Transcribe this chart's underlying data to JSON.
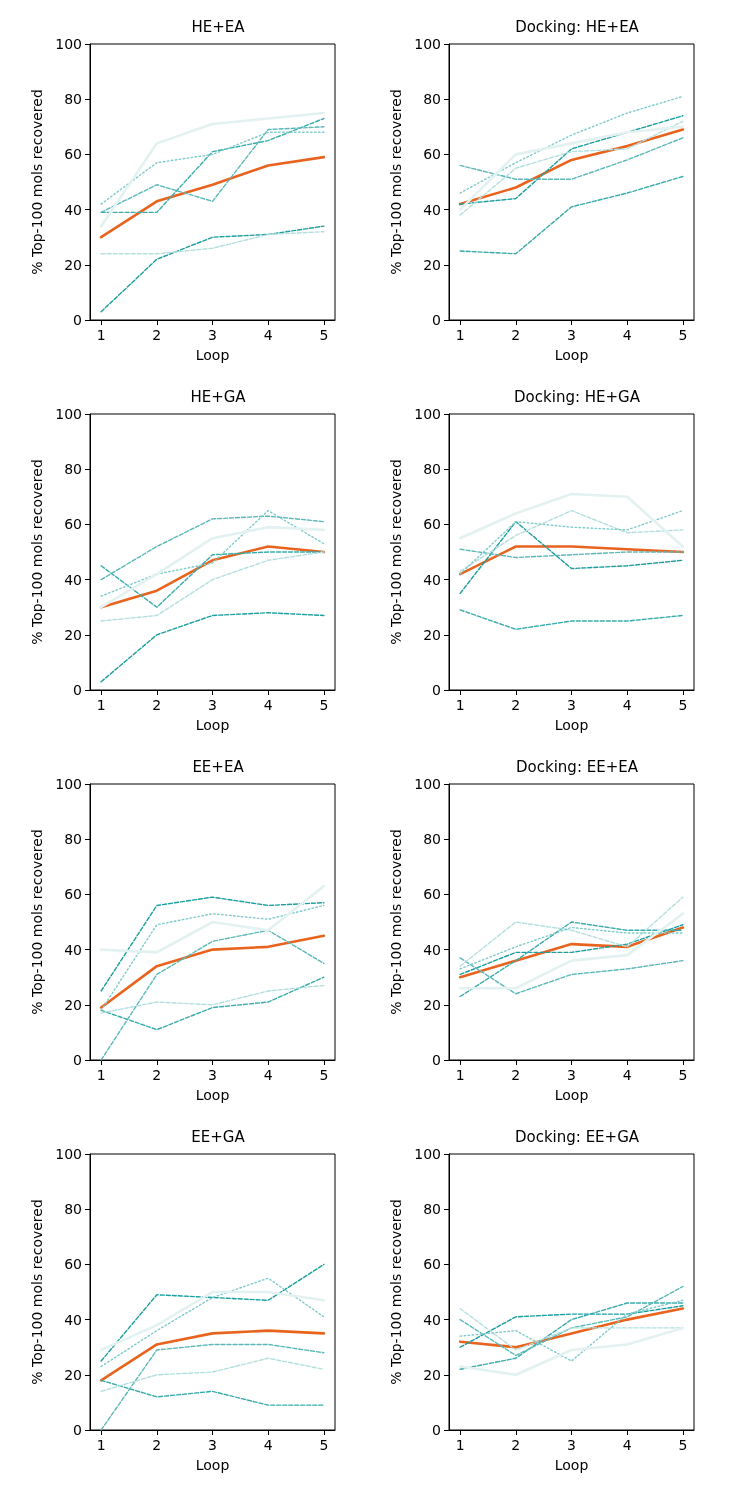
{
  "chart_data": [
    {
      "type": "line",
      "title": "HE+EA",
      "xlabel": "Loop",
      "ylabel": "% Top-100 mols recovered",
      "x": [
        1,
        2,
        3,
        4,
        5
      ],
      "xlim": [
        0.8,
        5.2
      ],
      "xticks": [
        1,
        2,
        3,
        4,
        5
      ],
      "ylim": [
        0,
        100
      ],
      "yticks": [
        0,
        20,
        40,
        60,
        80,
        100
      ],
      "series": [
        {
          "color": "#e3f1f1",
          "line_style": "solid",
          "values": [
            34,
            64,
            71,
            73,
            75
          ]
        },
        {
          "color": "#7fcaca",
          "line_style": "dotted",
          "values": [
            42,
            57,
            60,
            68,
            68
          ]
        },
        {
          "color": "#b5dfdf",
          "line_style": "dashed",
          "values": [
            24,
            24,
            26,
            31,
            32
          ]
        },
        {
          "color": "#5bb8b8",
          "line_style": "dashed",
          "values": [
            39,
            49,
            43,
            69,
            70
          ]
        },
        {
          "color": "#3aabab",
          "line_style": "dashed",
          "values": [
            39,
            39,
            61,
            65,
            73
          ]
        },
        {
          "color": "#1a9e9e",
          "line_style": "dashed",
          "values": [
            3,
            22,
            30,
            31,
            34
          ]
        },
        {
          "color": "#e8641e",
          "line_style": "solid",
          "values": [
            30,
            43,
            49,
            56,
            59
          ]
        }
      ]
    },
    {
      "type": "line",
      "title": "Docking: HE+EA",
      "xlabel": "Loop",
      "ylabel": "% Top-100 mols recovered",
      "x": [
        1,
        2,
        3,
        4,
        5
      ],
      "xlim": [
        0.8,
        5.2
      ],
      "xticks": [
        1,
        2,
        3,
        4,
        5
      ],
      "ylim": [
        0,
        100
      ],
      "yticks": [
        0,
        20,
        40,
        60,
        80,
        100
      ],
      "series": [
        {
          "color": "#e3f1f1",
          "line_style": "solid",
          "values": [
            40,
            60,
            64,
            68,
            70
          ]
        },
        {
          "color": "#7fcaca",
          "line_style": "dotted",
          "values": [
            46,
            57,
            67,
            75,
            81
          ]
        },
        {
          "color": "#b5dfdf",
          "line_style": "dashed",
          "values": [
            38,
            55,
            61,
            62,
            72
          ]
        },
        {
          "color": "#5bb8b8",
          "line_style": "dashed",
          "values": [
            56,
            51,
            51,
            58,
            66
          ]
        },
        {
          "color": "#3aabab",
          "line_style": "dashed",
          "values": [
            25,
            24,
            41,
            46,
            52
          ]
        },
        {
          "color": "#1a9e9e",
          "line_style": "dashed",
          "values": [
            42,
            44,
            62,
            68,
            74
          ]
        },
        {
          "color": "#e8641e",
          "line_style": "solid",
          "values": [
            42,
            48,
            58,
            63,
            69
          ]
        }
      ]
    },
    {
      "type": "line",
      "title": "HE+GA",
      "xlabel": "Loop",
      "ylabel": "% Top-100 mols recovered",
      "x": [
        1,
        2,
        3,
        4,
        5
      ],
      "xlim": [
        0.8,
        5.2
      ],
      "xticks": [
        1,
        2,
        3,
        4,
        5
      ],
      "ylim": [
        0,
        100
      ],
      "yticks": [
        0,
        20,
        40,
        60,
        80,
        100
      ],
      "series": [
        {
          "color": "#e3f1f1",
          "line_style": "solid",
          "values": [
            30,
            42,
            55,
            59,
            58
          ]
        },
        {
          "color": "#7fcaca",
          "line_style": "dotted",
          "values": [
            34,
            42,
            46,
            65,
            53
          ]
        },
        {
          "color": "#b5dfdf",
          "line_style": "dashed",
          "values": [
            25,
            27,
            40,
            47,
            50
          ]
        },
        {
          "color": "#5bb8b8",
          "line_style": "dashed",
          "values": [
            40,
            52,
            62,
            63,
            61
          ]
        },
        {
          "color": "#3aabab",
          "line_style": "dashed",
          "values": [
            45,
            30,
            49,
            50,
            50
          ]
        },
        {
          "color": "#1a9e9e",
          "line_style": "dashed",
          "values": [
            3,
            20,
            27,
            28,
            27
          ]
        },
        {
          "color": "#e8641e",
          "line_style": "solid",
          "values": [
            30,
            36,
            47,
            52,
            50
          ]
        }
      ]
    },
    {
      "type": "line",
      "title": "Docking: HE+GA",
      "xlabel": "Loop",
      "ylabel": "% Top-100 mols recovered",
      "x": [
        1,
        2,
        3,
        4,
        5
      ],
      "xlim": [
        0.8,
        5.2
      ],
      "xticks": [
        1,
        2,
        3,
        4,
        5
      ],
      "ylim": [
        0,
        100
      ],
      "yticks": [
        0,
        20,
        40,
        60,
        80,
        100
      ],
      "series": [
        {
          "color": "#e3f1f1",
          "line_style": "solid",
          "values": [
            55,
            64,
            71,
            70,
            52
          ]
        },
        {
          "color": "#7fcaca",
          "line_style": "dotted",
          "values": [
            42,
            61,
            59,
            58,
            65
          ]
        },
        {
          "color": "#b5dfdf",
          "line_style": "dashed",
          "values": [
            43,
            56,
            65,
            57,
            58
          ]
        },
        {
          "color": "#5bb8b8",
          "line_style": "dashed",
          "values": [
            51,
            48,
            49,
            50,
            50
          ]
        },
        {
          "color": "#3aabab",
          "line_style": "dashed",
          "values": [
            29,
            22,
            25,
            25,
            27
          ]
        },
        {
          "color": "#1a9e9e",
          "line_style": "dashed",
          "values": [
            35,
            61,
            44,
            45,
            47
          ]
        },
        {
          "color": "#e8641e",
          "line_style": "solid",
          "values": [
            42,
            52,
            52,
            51,
            50
          ]
        }
      ]
    },
    {
      "type": "line",
      "title": "EE+EA",
      "xlabel": "Loop",
      "ylabel": "% Top-100 mols recovered",
      "x": [
        1,
        2,
        3,
        4,
        5
      ],
      "xlim": [
        0.8,
        5.2
      ],
      "xticks": [
        1,
        2,
        3,
        4,
        5
      ],
      "ylim": [
        0,
        100
      ],
      "yticks": [
        0,
        20,
        40,
        60,
        80,
        100
      ],
      "series": [
        {
          "color": "#e3f1f1",
          "line_style": "solid",
          "values": [
            40,
            39,
            50,
            47,
            63
          ]
        },
        {
          "color": "#7fcaca",
          "line_style": "dotted",
          "values": [
            18,
            49,
            53,
            51,
            56
          ]
        },
        {
          "color": "#b5dfdf",
          "line_style": "dashed",
          "values": [
            17,
            21,
            20,
            25,
            27
          ]
        },
        {
          "color": "#5bb8b8",
          "line_style": "dashed",
          "values": [
            0,
            31,
            43,
            47,
            35
          ]
        },
        {
          "color": "#3aabab",
          "line_style": "dashed",
          "values": [
            18,
            11,
            19,
            21,
            30
          ]
        },
        {
          "color": "#1a9e9e",
          "line_style": "dashed",
          "values": [
            25,
            56,
            59,
            56,
            57
          ]
        },
        {
          "color": "#e8641e",
          "line_style": "solid",
          "values": [
            19,
            34,
            40,
            41,
            45
          ]
        }
      ]
    },
    {
      "type": "line",
      "title": "Docking: EE+EA",
      "xlabel": "Loop",
      "ylabel": "% Top-100 mols recovered",
      "x": [
        1,
        2,
        3,
        4,
        5
      ],
      "xlim": [
        0.8,
        5.2
      ],
      "xticks": [
        1,
        2,
        3,
        4,
        5
      ],
      "ylim": [
        0,
        100
      ],
      "yticks": [
        0,
        20,
        40,
        60,
        80,
        100
      ],
      "series": [
        {
          "color": "#e3f1f1",
          "line_style": "solid",
          "values": [
            26,
            26,
            36,
            38,
            53
          ]
        },
        {
          "color": "#7fcaca",
          "line_style": "dotted",
          "values": [
            33,
            41,
            48,
            46,
            46
          ]
        },
        {
          "color": "#b5dfdf",
          "line_style": "dashed",
          "values": [
            34,
            50,
            47,
            41,
            59
          ]
        },
        {
          "color": "#5bb8b8",
          "line_style": "dashed",
          "values": [
            37,
            24,
            31,
            33,
            36
          ]
        },
        {
          "color": "#3aabab",
          "line_style": "dashed",
          "values": [
            23,
            36,
            50,
            47,
            47
          ]
        },
        {
          "color": "#1a9e9e",
          "line_style": "dashed",
          "values": [
            31,
            39,
            39,
            42,
            49
          ]
        },
        {
          "color": "#e8641e",
          "line_style": "solid",
          "values": [
            30,
            36,
            42,
            41,
            48
          ]
        }
      ]
    },
    {
      "type": "line",
      "title": "EE+GA",
      "xlabel": "Loop",
      "ylabel": "% Top-100 mols recovered",
      "x": [
        1,
        2,
        3,
        4,
        5
      ],
      "xlim": [
        0.8,
        5.2
      ],
      "xticks": [
        1,
        2,
        3,
        4,
        5
      ],
      "ylim": [
        0,
        100
      ],
      "yticks": [
        0,
        20,
        40,
        60,
        80,
        100
      ],
      "series": [
        {
          "color": "#e3f1f1",
          "line_style": "solid",
          "values": [
            29,
            38,
            50,
            50,
            47
          ]
        },
        {
          "color": "#7fcaca",
          "line_style": "dotted",
          "values": [
            23,
            36,
            48,
            55,
            41
          ]
        },
        {
          "color": "#b5dfdf",
          "line_style": "dashed",
          "values": [
            14,
            20,
            21,
            26,
            22
          ]
        },
        {
          "color": "#5bb8b8",
          "line_style": "dashed",
          "values": [
            0,
            29,
            31,
            31,
            28
          ]
        },
        {
          "color": "#3aabab",
          "line_style": "dashed",
          "values": [
            18,
            12,
            14,
            9,
            9
          ]
        },
        {
          "color": "#1a9e9e",
          "line_style": "dashed",
          "values": [
            25,
            49,
            48,
            47,
            60
          ]
        },
        {
          "color": "#e8641e",
          "line_style": "solid",
          "values": [
            18,
            31,
            35,
            36,
            35
          ]
        }
      ]
    },
    {
      "type": "line",
      "title": "Docking: EE+GA",
      "xlabel": "Loop",
      "ylabel": "% Top-100 mols recovered",
      "x": [
        1,
        2,
        3,
        4,
        5
      ],
      "xlim": [
        0.8,
        5.2
      ],
      "xticks": [
        1,
        2,
        3,
        4,
        5
      ],
      "ylim": [
        0,
        100
      ],
      "yticks": [
        0,
        20,
        40,
        60,
        80,
        100
      ],
      "series": [
        {
          "color": "#e3f1f1",
          "line_style": "solid",
          "values": [
            23,
            20,
            29,
            31,
            37
          ]
        },
        {
          "color": "#7fcaca",
          "line_style": "dotted",
          "values": [
            34,
            36,
            25,
            42,
            47
          ]
        },
        {
          "color": "#b5dfdf",
          "line_style": "dashed",
          "values": [
            44,
            29,
            37,
            37,
            37
          ]
        },
        {
          "color": "#5bb8b8",
          "line_style": "dashed",
          "values": [
            40,
            27,
            37,
            41,
            52
          ]
        },
        {
          "color": "#3aabab",
          "line_style": "dashed",
          "values": [
            22,
            26,
            40,
            46,
            46
          ]
        },
        {
          "color": "#1a9e9e",
          "line_style": "dashed",
          "values": [
            30,
            41,
            42,
            42,
            45
          ]
        },
        {
          "color": "#e8641e",
          "line_style": "solid",
          "values": [
            32,
            30,
            35,
            40,
            44
          ]
        }
      ]
    }
  ]
}
